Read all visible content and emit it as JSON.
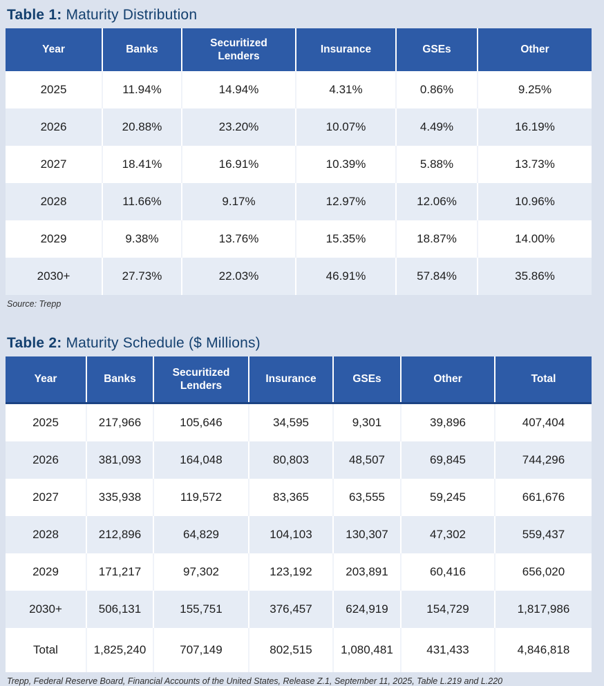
{
  "colors": {
    "page_background": "#dbe2ee",
    "header_blue": "#2d5ba7",
    "header_underline_navy": "#1c4383",
    "title_navy": "#14406f",
    "alt_row_blue": "#e6ecf5"
  },
  "table1": {
    "title_prefix": "Table 1:",
    "title_rest": " Maturity Distribution",
    "columns": [
      "Year",
      "Banks",
      "Securitized Lenders",
      "Insurance",
      "GSEs",
      "Other"
    ],
    "rows": [
      [
        "2025",
        "11.94%",
        "14.94%",
        "4.31%",
        "0.86%",
        "9.25%"
      ],
      [
        "2026",
        "20.88%",
        "23.20%",
        "10.07%",
        "4.49%",
        "16.19%"
      ],
      [
        "2027",
        "18.41%",
        "16.91%",
        "10.39%",
        "5.88%",
        "13.73%"
      ],
      [
        "2028",
        "11.66%",
        "9.17%",
        "12.97%",
        "12.06%",
        "10.96%"
      ],
      [
        "2029",
        "9.38%",
        "13.76%",
        "15.35%",
        "18.87%",
        "14.00%"
      ],
      [
        "2030+",
        "27.73%",
        "22.03%",
        "46.91%",
        "57.84%",
        "35.86%"
      ]
    ],
    "source": "Source: Trepp"
  },
  "table2": {
    "title_prefix": "Table 2:",
    "title_rest": " Maturity Schedule ($ Millions)",
    "columns": [
      "Year",
      "Banks",
      "Securitized Lenders",
      "Insurance",
      "GSEs",
      "Other",
      "Total"
    ],
    "rows": [
      [
        "2025",
        "217,966",
        "105,646",
        "34,595",
        "9,301",
        "39,896",
        "407,404"
      ],
      [
        "2026",
        "381,093",
        "164,048",
        "80,803",
        "48,507",
        "69,845",
        "744,296"
      ],
      [
        "2027",
        "335,938",
        "119,572",
        "83,365",
        "63,555",
        "59,245",
        "661,676"
      ],
      [
        "2028",
        "212,896",
        "64,829",
        "104,103",
        "130,307",
        "47,302",
        "559,437"
      ],
      [
        "2029",
        "171,217",
        "97,302",
        "123,192",
        "203,891",
        "60,416",
        "656,020"
      ],
      [
        "2030+",
        "506,131",
        "155,751",
        "376,457",
        "624,919",
        "154,729",
        "1,817,986"
      ]
    ],
    "total_row": [
      "Total",
      "1,825,240",
      "707,149",
      "802,515",
      "1,080,481",
      "431,433",
      "4,846,818"
    ],
    "source": "Trepp, Federal Reserve Board, Financial Accounts of the United States, Release Z.1, September 11, 2025, Table L.219 and L.220"
  }
}
